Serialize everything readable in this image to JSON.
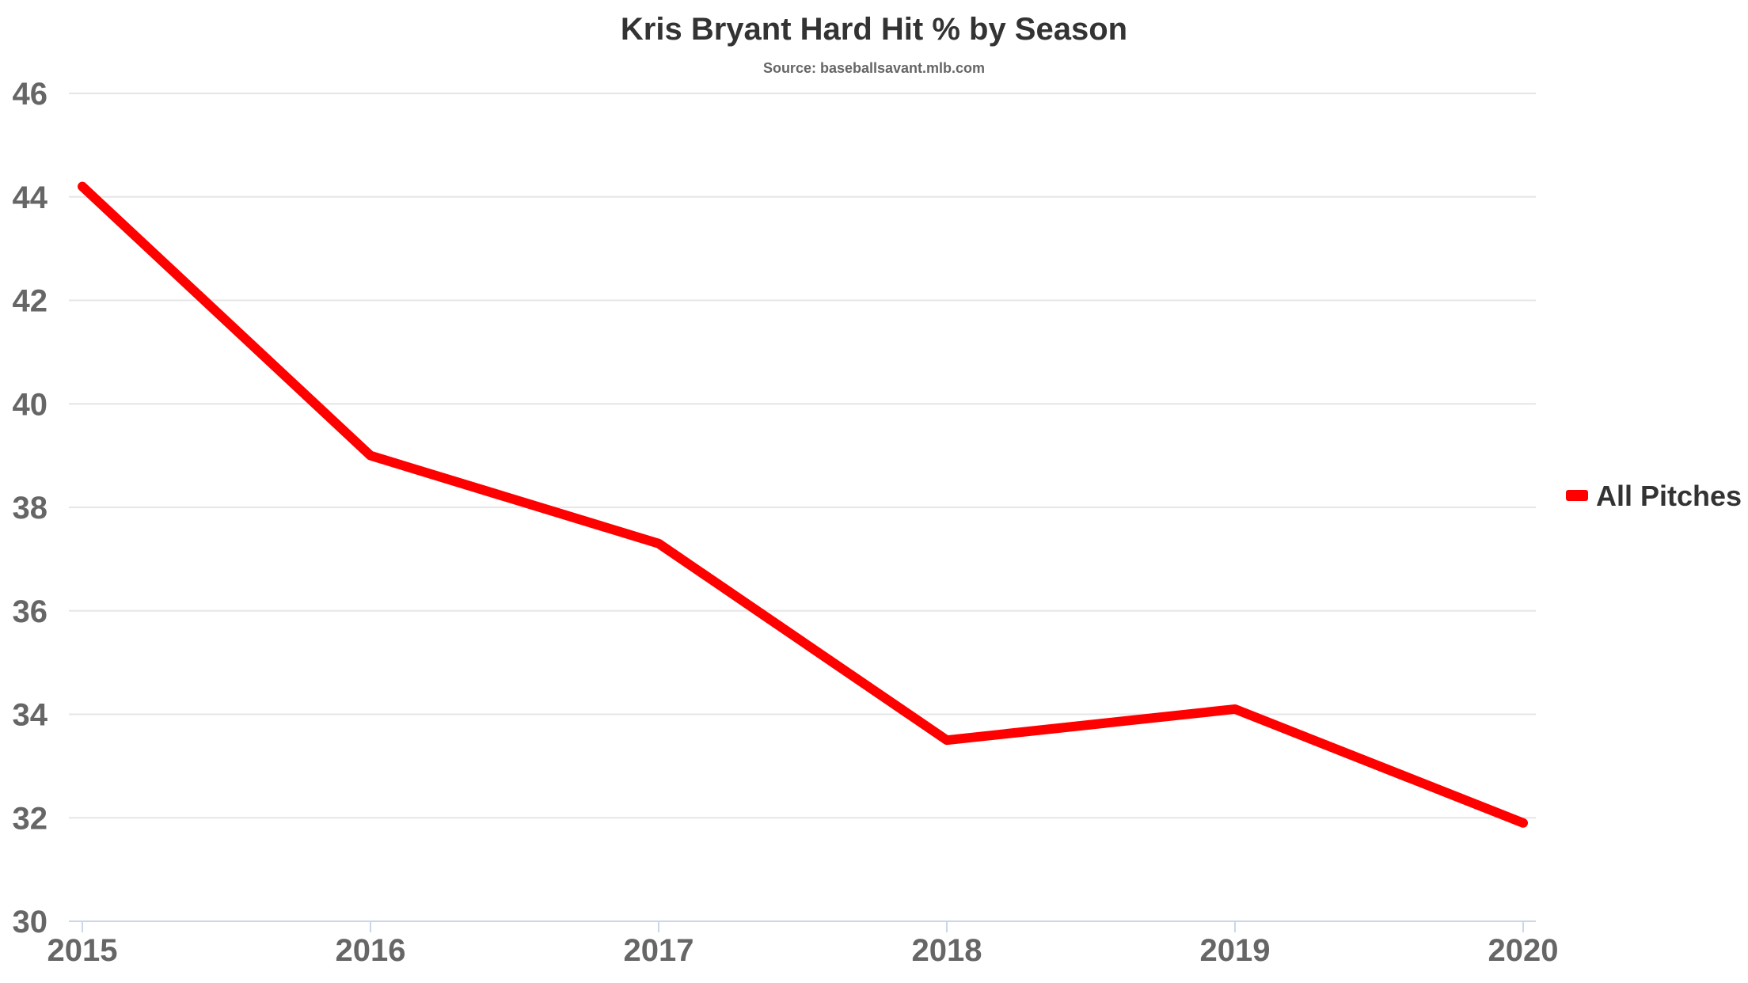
{
  "chart_data": {
    "type": "line",
    "title": "Kris Bryant Hard Hit % by Season",
    "subtitle": "Source: baseballsavant.mlb.com",
    "xlabel": "",
    "ylabel": "",
    "categories": [
      "2015",
      "2016",
      "2017",
      "2018",
      "2019",
      "2020"
    ],
    "series": [
      {
        "name": "All Pitches",
        "values": [
          44.2,
          39.0,
          37.3,
          33.5,
          34.1,
          31.9
        ],
        "color": "#ff0000"
      }
    ],
    "ylim": [
      30,
      46
    ],
    "yticks": [
      30,
      32,
      34,
      36,
      38,
      40,
      42,
      44,
      46
    ],
    "grid": true,
    "legend": "right"
  }
}
